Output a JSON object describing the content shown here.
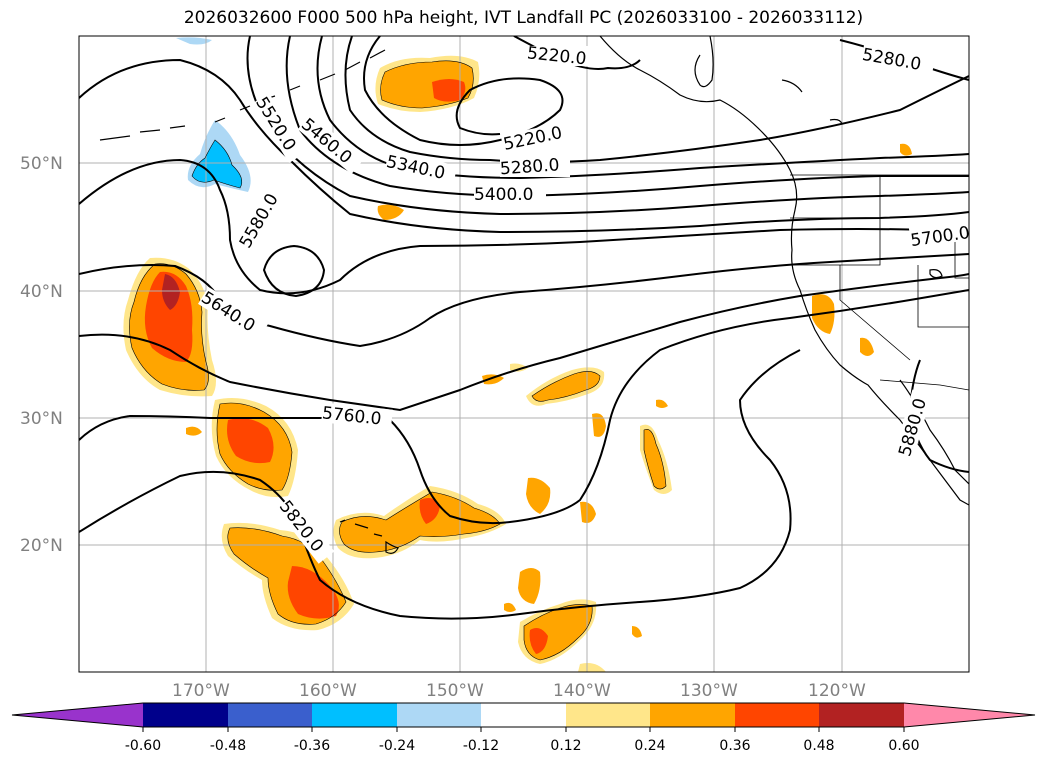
{
  "title": "2026032600 F000 500 hPa height, IVT Landfall PC (2026033100 - 2026033112)",
  "map": {
    "lon_range": [
      -180,
      -110
    ],
    "lat_range": [
      10,
      60
    ],
    "lat_ticks": [
      {
        "value": 20,
        "label": "20°N"
      },
      {
        "value": 30,
        "label": "30°N"
      },
      {
        "value": 40,
        "label": "40°N"
      },
      {
        "value": 50,
        "label": "50°N"
      }
    ],
    "lon_ticks": [
      {
        "value": -170,
        "label": "170°W"
      },
      {
        "value": -160,
        "label": "160°W"
      },
      {
        "value": -150,
        "label": "150°W"
      },
      {
        "value": -140,
        "label": "140°W"
      },
      {
        "value": -130,
        "label": "130°W"
      },
      {
        "value": -120,
        "label": "120°W"
      }
    ],
    "gridlines": true,
    "contour_labels": [
      "5220.0",
      "5220.0",
      "5280.0",
      "5280.0",
      "5340.0",
      "5400.0",
      "5460.0",
      "5520.0",
      "5580.0",
      "5640.0",
      "5700.0",
      "5760.0",
      "5820.0",
      "5880.0"
    ]
  },
  "colorbar": {
    "colors": [
      "#9933cc",
      "#00008b",
      "#3a5fcd",
      "#00bfff",
      "#add8f5",
      "#ffffff",
      "#ffe68a",
      "#ffa500",
      "#ff4500",
      "#b22222",
      "#ff88aa"
    ],
    "tick_labels": [
      "-0.60",
      "-0.48",
      "-0.36",
      "-0.24",
      "-0.12",
      "0.12",
      "0.24",
      "0.36",
      "0.48",
      "0.60"
    ]
  }
}
